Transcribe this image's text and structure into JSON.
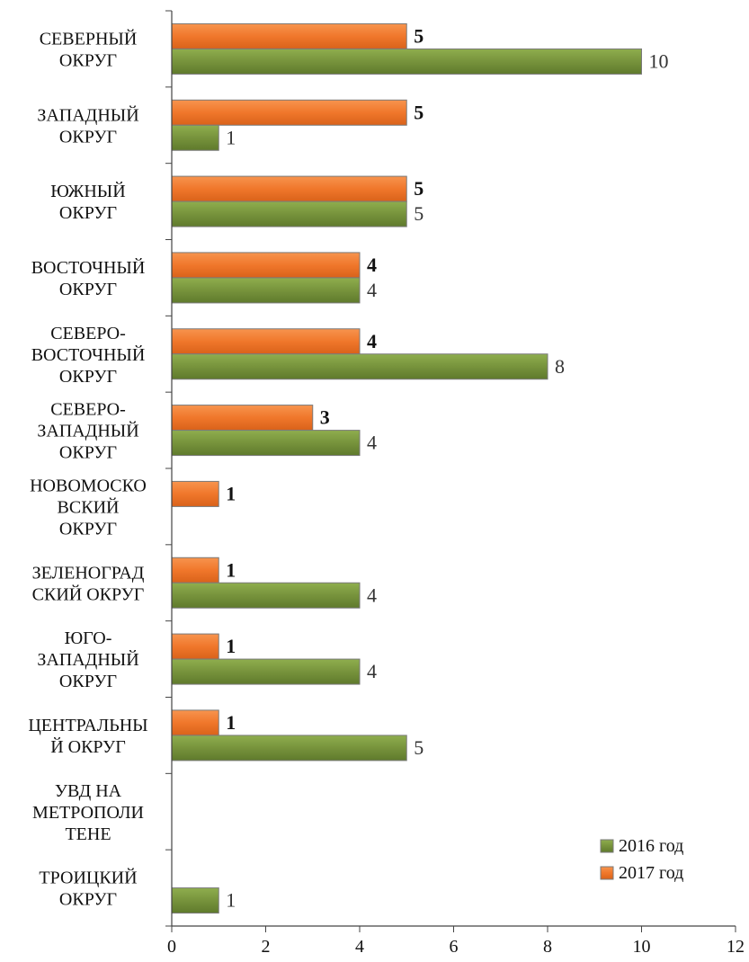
{
  "chart_data": {
    "type": "bar",
    "orientation": "horizontal",
    "categories": [
      [
        "СЕВЕРНЫЙ",
        "ОКРУГ"
      ],
      [
        "ЗАПАДНЫЙ",
        "ОКРУГ"
      ],
      [
        "ЮЖНЫЙ",
        "ОКРУГ"
      ],
      [
        "ВОСТОЧНЫЙ",
        "ОКРУГ"
      ],
      [
        "СЕВЕРО-",
        "ВОСТОЧНЫЙ",
        "ОКРУГ"
      ],
      [
        "СЕВЕРО-",
        "ЗАПАДНЫЙ",
        "ОКРУГ"
      ],
      [
        "НОВОМОСКО",
        "ВСКИЙ",
        "ОКРУГ"
      ],
      [
        "ЗЕЛЕНОГРАД",
        "СКИЙ ОКРУГ"
      ],
      [
        "ЮГО-",
        "ЗАПАДНЫЙ",
        "ОКРУГ"
      ],
      [
        "ЦЕНТРАЛЬНЫ",
        "Й ОКРУГ"
      ],
      [
        "УВД НА",
        "МЕТРОПОЛИ",
        "ТЕНЕ"
      ],
      [
        "ТРОИЦКИЙ",
        "ОКРУГ"
      ]
    ],
    "series": [
      {
        "name": "2016 год",
        "color": "#77933c",
        "values": [
          10,
          1,
          5,
          4,
          8,
          4,
          null,
          4,
          4,
          5,
          null,
          1
        ]
      },
      {
        "name": "2017 год",
        "color": "#f0772b",
        "values": [
          5,
          5,
          5,
          4,
          4,
          3,
          1,
          1,
          1,
          1,
          null,
          null
        ]
      }
    ],
    "xlim": [
      0,
      12
    ],
    "xticks": [
      "0",
      "2",
      "4",
      "6",
      "8",
      "10",
      "12"
    ],
    "grid": false,
    "legend": {
      "position": "bottom-right",
      "entries": [
        "2016 год",
        "2017 год"
      ]
    },
    "title": "",
    "xlabel": "",
    "ylabel": ""
  }
}
